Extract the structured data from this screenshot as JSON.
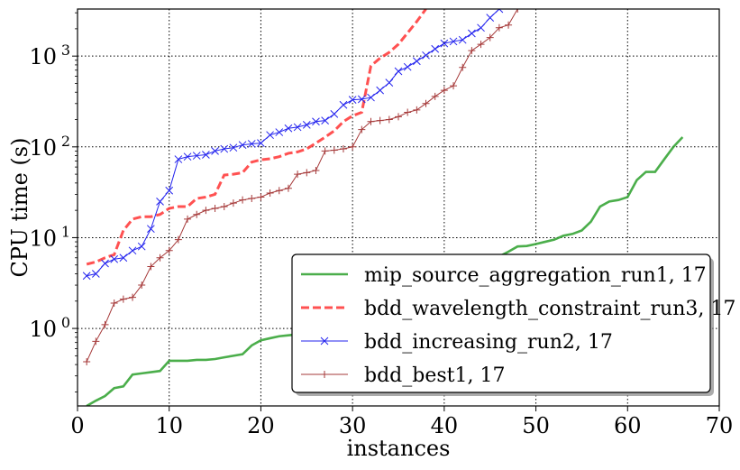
{
  "chart_data": {
    "type": "line",
    "xlabel": "instances",
    "ylabel": "CPU time (s)",
    "xlim": [
      0,
      70
    ],
    "ylim": [
      0.14,
      3300
    ],
    "yscale": "log",
    "grid": true,
    "legend_position": "lower-right",
    "x_ticks": [
      {
        "value": 0,
        "label": "0"
      },
      {
        "value": 10,
        "label": "10"
      },
      {
        "value": 20,
        "label": "20"
      },
      {
        "value": 30,
        "label": "30"
      },
      {
        "value": 40,
        "label": "40"
      },
      {
        "value": 50,
        "label": "50"
      },
      {
        "value": 60,
        "label": "60"
      },
      {
        "value": 70,
        "label": "70"
      }
    ],
    "y_ticks": [
      {
        "value": 1,
        "base": "10",
        "exp": "0"
      },
      {
        "value": 10,
        "base": "10",
        "exp": "1"
      },
      {
        "value": 100,
        "base": "10",
        "exp": "2"
      },
      {
        "value": 1000,
        "base": "10",
        "exp": "3"
      }
    ],
    "series": [
      {
        "name": "mip_source_aggregation_run1, 17",
        "color": "#2ca02c",
        "style": "solid",
        "marker": "none",
        "x": [
          1,
          2,
          3,
          4,
          5,
          6,
          7,
          8,
          9,
          10,
          11,
          12,
          13,
          14,
          15,
          16,
          17,
          18,
          19,
          20,
          21,
          22,
          23,
          24,
          25,
          26,
          27,
          28,
          29,
          30,
          31,
          32,
          33,
          34,
          35,
          36,
          37,
          38,
          39,
          40,
          41,
          42,
          43,
          44,
          45,
          46,
          47,
          48,
          49,
          50,
          51,
          52,
          53,
          54,
          55,
          56,
          57,
          58,
          59,
          60,
          61,
          62,
          63,
          64,
          65,
          66
        ],
        "y": [
          0.14,
          0.16,
          0.18,
          0.22,
          0.23,
          0.31,
          0.32,
          0.33,
          0.34,
          0.44,
          0.44,
          0.44,
          0.45,
          0.45,
          0.46,
          0.48,
          0.5,
          0.52,
          0.65,
          0.74,
          0.78,
          0.82,
          0.84,
          0.86,
          0.9,
          0.95,
          1.0,
          1.1,
          1.2,
          1.3,
          1.4,
          1.5,
          1.7,
          1.8,
          2.0,
          2.2,
          2.4,
          2.7,
          3.0,
          3.3,
          3.6,
          4.0,
          4.5,
          5.0,
          5.6,
          6.2,
          7.0,
          8.0,
          8.1,
          8.5,
          9.0,
          9.5,
          10.5,
          11,
          12,
          15,
          22,
          25,
          26,
          28,
          43,
          53,
          53,
          73,
          100,
          128
        ]
      },
      {
        "name": "bdd_wavelength_constraint_run3, 17",
        "color": "#ff3333",
        "style": "dashed",
        "marker": "none",
        "x": [
          1,
          2,
          3,
          4,
          5,
          6,
          7,
          8,
          9,
          10,
          11,
          12,
          13,
          14,
          15,
          16,
          17,
          18,
          19,
          20,
          21,
          22,
          23,
          24,
          25,
          26,
          27,
          28,
          29,
          30,
          31,
          32,
          33,
          34,
          35,
          36,
          37,
          38
        ],
        "y": [
          5.1,
          5.4,
          6.0,
          6.5,
          12,
          16,
          17,
          17,
          18,
          21,
          22,
          22,
          27,
          28,
          30,
          49,
          50,
          52,
          68,
          72,
          74,
          78,
          85,
          88,
          95,
          110,
          128,
          150,
          190,
          220,
          240,
          780,
          950,
          1100,
          1350,
          1800,
          2400,
          3300
        ]
      },
      {
        "name": "bdd_increasing_run2, 17",
        "color": "#2222ee",
        "style": "solid",
        "marker": "x",
        "x": [
          1,
          2,
          3,
          4,
          5,
          6,
          7,
          8,
          9,
          10,
          11,
          12,
          13,
          14,
          15,
          16,
          17,
          18,
          19,
          20,
          21,
          22,
          23,
          24,
          25,
          26,
          27,
          28,
          29,
          30,
          31,
          32,
          33,
          34,
          35,
          36,
          37,
          38,
          39,
          40,
          41,
          42,
          43,
          44,
          45,
          46
        ],
        "y": [
          3.8,
          4.0,
          5.2,
          5.8,
          6.0,
          7.2,
          8.0,
          12.5,
          25,
          33,
          73,
          78,
          80,
          82,
          90,
          95,
          98,
          105,
          108,
          110,
          135,
          145,
          160,
          165,
          175,
          190,
          195,
          230,
          290,
          330,
          335,
          350,
          420,
          510,
          680,
          760,
          880,
          1020,
          1200,
          1380,
          1450,
          1510,
          1780,
          2050,
          2650,
          3300
        ]
      },
      {
        "name": "bdd_best1, 17",
        "color": "#a63a3a",
        "style": "solid",
        "marker": "+",
        "x": [
          1,
          2,
          3,
          4,
          5,
          6,
          7,
          8,
          9,
          10,
          11,
          12,
          13,
          14,
          15,
          16,
          17,
          18,
          19,
          20,
          21,
          22,
          23,
          24,
          25,
          26,
          27,
          28,
          29,
          30,
          31,
          32,
          33,
          34,
          35,
          36,
          37,
          38,
          39,
          40,
          41,
          42,
          43,
          44,
          45,
          46,
          47,
          48
        ],
        "y": [
          0.43,
          0.72,
          1.1,
          1.9,
          2.1,
          2.2,
          3.0,
          4.8,
          6.0,
          7.2,
          9.5,
          16,
          18,
          20,
          21,
          22,
          24,
          26,
          27,
          28,
          31,
          33,
          35,
          50,
          52,
          55,
          90,
          92,
          95,
          100,
          155,
          190,
          195,
          200,
          215,
          240,
          255,
          300,
          360,
          420,
          470,
          750,
          1150,
          1350,
          1600,
          2050,
          2200,
          3300
        ]
      }
    ]
  }
}
